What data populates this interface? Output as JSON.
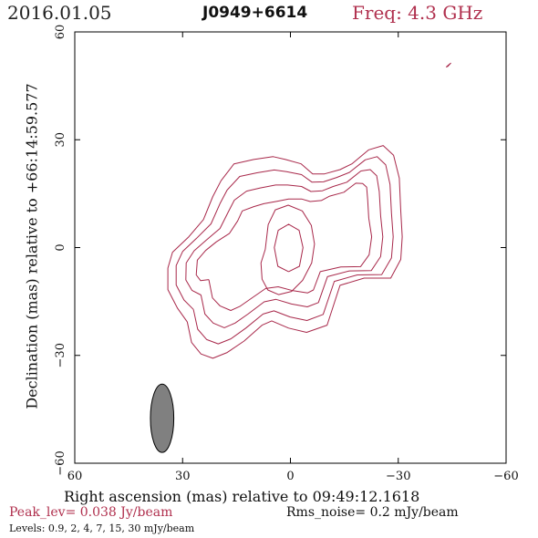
{
  "header": {
    "date": "2016.01.05",
    "source": "J0949+6614",
    "freq": "Freq: 4.3 GHz"
  },
  "footer": {
    "peak": "Peak_lev=  0.038 Jy/beam",
    "rms": "Rms_noise=   0.2 mJy/beam",
    "levels": "Levels: 0.9,   2,   4,   7,  15,  30 mJy/beam"
  },
  "colors": {
    "contour": "#a8284a",
    "beam_fill": "#808080",
    "text_accent": "#b0304e"
  },
  "chart_data": {
    "type": "contour",
    "xlabel": "Right ascension (mas) relative to 09:49:12.1618",
    "ylabel": "Declination (mas) relative to +66:14:59.577",
    "xlim": [
      60,
      -60
    ],
    "ylim": [
      -60,
      60
    ],
    "xticks": [
      60,
      30,
      0,
      -30,
      -60
    ],
    "yticks": [
      -60,
      -30,
      0,
      30,
      60
    ],
    "xtick_labels": [
      "60",
      "30",
      "0",
      "−30",
      "−60"
    ],
    "ytick_labels": [
      "−60",
      "−30",
      "0",
      "30",
      "60"
    ],
    "levels_mjy": [
      0.9,
      2,
      4,
      7,
      15,
      30
    ],
    "peak_jy_per_beam": 0.038,
    "rms_mjy_per_beam": 0.2,
    "beam": {
      "x": 35.7,
      "y": -47.5,
      "major": 19,
      "minor": 6.5,
      "pa_deg": 0
    },
    "contours": [
      {
        "level": 0.9,
        "points": [
          [
            28.7,
            -20.7
          ],
          [
            27.5,
            -26.4
          ],
          [
            24.9,
            -29.6
          ],
          [
            21.6,
            -30.8
          ],
          [
            17.6,
            -29.2
          ],
          [
            12.9,
            -26.0
          ],
          [
            7.9,
            -21.6
          ],
          [
            5.2,
            -20.4
          ],
          [
            0.5,
            -22.4
          ],
          [
            -4.5,
            -23.6
          ],
          [
            -10.2,
            -21.6
          ],
          [
            -13.8,
            -10.5
          ],
          [
            -20.5,
            -8.5
          ],
          [
            -27.9,
            -8.5
          ],
          [
            -30.7,
            -3.3
          ],
          [
            -31.1,
            3.0
          ],
          [
            -30.7,
            10.2
          ],
          [
            -30.3,
            19.3
          ],
          [
            -28.7,
            25.7
          ],
          [
            -25.8,
            28.4
          ],
          [
            -21.8,
            27.2
          ],
          [
            -17.1,
            23.3
          ],
          [
            -13.8,
            21.7
          ],
          [
            -9.5,
            20.5
          ],
          [
            -6.2,
            20.5
          ],
          [
            -3.0,
            23.3
          ],
          [
            1.4,
            24.5
          ],
          [
            4.8,
            25.3
          ],
          [
            10.2,
            24.5
          ],
          [
            15.7,
            23.3
          ],
          [
            19.3,
            18.6
          ],
          [
            21.6,
            14.2
          ],
          [
            24.2,
            7.8
          ],
          [
            28.3,
            3.0
          ],
          [
            32.8,
            -1.3
          ],
          [
            34.1,
            -5.7
          ],
          [
            34.1,
            -11.7
          ],
          [
            31.4,
            -16.9
          ],
          [
            28.7,
            -20.7
          ]
        ]
      },
      {
        "level": 2,
        "points": [
          [
            27.0,
            -17.2
          ],
          [
            25.8,
            -22.7
          ],
          [
            23.3,
            -25.6
          ],
          [
            20.1,
            -26.8
          ],
          [
            16.6,
            -25.4
          ],
          [
            12.4,
            -22.4
          ],
          [
            7.6,
            -18.5
          ],
          [
            4.6,
            -17.6
          ],
          [
            0.1,
            -19.3
          ],
          [
            -4.6,
            -20.3
          ],
          [
            -9.1,
            -18.6
          ],
          [
            -12.2,
            -9.4
          ],
          [
            -18.6,
            -7.6
          ],
          [
            -25.4,
            -7.5
          ],
          [
            -28.1,
            -2.9
          ],
          [
            -28.6,
            3.0
          ],
          [
            -28.1,
            9.6
          ],
          [
            -27.7,
            17.6
          ],
          [
            -26.5,
            23.0
          ],
          [
            -24.1,
            25.3
          ],
          [
            -20.8,
            24.4
          ],
          [
            -16.4,
            20.9
          ],
          [
            -12.9,
            19.5
          ],
          [
            -9.2,
            18.3
          ],
          [
            -6.0,
            18.2
          ],
          [
            -3.1,
            20.3
          ],
          [
            1.1,
            21.1
          ],
          [
            4.5,
            21.6
          ],
          [
            9.3,
            20.8
          ],
          [
            14.1,
            19.8
          ],
          [
            17.6,
            16.0
          ],
          [
            19.6,
            12.2
          ],
          [
            22.1,
            6.6
          ],
          [
            26.1,
            2.6
          ],
          [
            30.0,
            -1.1
          ],
          [
            31.8,
            -5.0
          ],
          [
            31.8,
            -10.4
          ],
          [
            29.6,
            -14.6
          ],
          [
            27.0,
            -17.2
          ]
        ]
      },
      {
        "level": 4,
        "points": [
          [
            24.9,
            -13.2
          ],
          [
            23.8,
            -18.5
          ],
          [
            21.5,
            -21.0
          ],
          [
            18.4,
            -22.3
          ],
          [
            15.4,
            -21.0
          ],
          [
            11.8,
            -18.5
          ],
          [
            7.3,
            -15.1
          ],
          [
            4.0,
            -14.4
          ],
          [
            -0.3,
            -15.7
          ],
          [
            -4.7,
            -16.5
          ],
          [
            -7.8,
            -15.3
          ],
          [
            -10.3,
            -8.1
          ],
          [
            -16.4,
            -6.5
          ],
          [
            -22.5,
            -6.4
          ],
          [
            -25.1,
            -2.5
          ],
          [
            -25.7,
            3.0
          ],
          [
            -25.1,
            8.9
          ],
          [
            -24.7,
            15.6
          ],
          [
            -24.0,
            20.0
          ],
          [
            -22.2,
            21.7
          ],
          [
            -19.6,
            21.3
          ],
          [
            -15.7,
            18.2
          ],
          [
            -11.9,
            17.0
          ],
          [
            -8.9,
            15.8
          ],
          [
            -5.7,
            15.6
          ],
          [
            -3.1,
            17.0
          ],
          [
            0.8,
            17.4
          ],
          [
            4.1,
            17.4
          ],
          [
            8.4,
            16.6
          ],
          [
            12.2,
            15.7
          ],
          [
            15.6,
            13.2
          ],
          [
            17.3,
            9.9
          ],
          [
            19.6,
            5.3
          ],
          [
            23.4,
            2.1
          ],
          [
            26.8,
            -0.9
          ],
          [
            29.0,
            -4.3
          ],
          [
            29.1,
            -9.0
          ],
          [
            27.4,
            -11.9
          ],
          [
            24.9,
            -13.2
          ]
        ]
      },
      {
        "level": 7,
        "points": [
          [
            22.7,
            -8.9
          ],
          [
            21.7,
            -14.0
          ],
          [
            19.6,
            -16.2
          ],
          [
            16.6,
            -17.5
          ],
          [
            14.1,
            -16.4
          ],
          [
            11.1,
            -14.3
          ],
          [
            6.9,
            -11.4
          ],
          [
            3.4,
            -10.9
          ],
          [
            -0.7,
            -12.0
          ],
          [
            -4.8,
            -12.6
          ],
          [
            -6.4,
            -11.8
          ],
          [
            -8.3,
            -6.7
          ],
          [
            -14.0,
            -5.4
          ],
          [
            -19.5,
            -5.3
          ],
          [
            -21.9,
            -2.0
          ],
          [
            -22.6,
            3.0
          ],
          [
            -21.8,
            8.2
          ],
          [
            -21.5,
            13.4
          ],
          [
            -21.2,
            16.8
          ],
          [
            -20.1,
            17.8
          ],
          [
            -18.2,
            17.9
          ],
          [
            -14.9,
            15.4
          ],
          [
            -10.9,
            14.3
          ],
          [
            -8.6,
            13.1
          ],
          [
            -5.5,
            12.8
          ],
          [
            -3.2,
            13.5
          ],
          [
            0.5,
            13.5
          ],
          [
            3.7,
            12.9
          ],
          [
            7.4,
            12.2
          ],
          [
            10.2,
            11.4
          ],
          [
            13.4,
            10.2
          ],
          [
            14.7,
            7.4
          ],
          [
            17.0,
            3.9
          ],
          [
            20.6,
            1.6
          ],
          [
            23.6,
            -0.8
          ],
          [
            25.9,
            -3.5
          ],
          [
            26.2,
            -7.6
          ],
          [
            25.0,
            -9.2
          ],
          [
            22.7,
            -8.9
          ]
        ]
      },
      {
        "level": 15,
        "points": [
          [
            7.0,
            -0.5
          ],
          [
            8.2,
            -4.3
          ],
          [
            7.9,
            -8.8
          ],
          [
            6.3,
            -11.8
          ],
          [
            3.3,
            -13.1
          ],
          [
            -0.3,
            -12.2
          ],
          [
            -3.4,
            -9.1
          ],
          [
            -5.9,
            -4.3
          ],
          [
            -6.7,
            1.0
          ],
          [
            -5.8,
            6.2
          ],
          [
            -3.3,
            10.2
          ],
          [
            0.6,
            11.8
          ],
          [
            4.2,
            10.5
          ],
          [
            6.2,
            6.4
          ],
          [
            7.0,
            -0.5
          ]
        ]
      },
      {
        "level": 30,
        "points": [
          [
            0.5,
            -6.7
          ],
          [
            -2.5,
            -5.2
          ],
          [
            -3.5,
            0.0
          ],
          [
            -2.4,
            4.8
          ],
          [
            0.5,
            6.5
          ],
          [
            3.4,
            4.8
          ],
          [
            4.5,
            0.0
          ],
          [
            3.5,
            -5.2
          ],
          [
            0.5,
            -6.7
          ]
        ]
      },
      {
        "level": 0.9,
        "points": [
          [
            -43.3,
            50.2
          ],
          [
            -44.0,
            50.8
          ],
          [
            -44.6,
            51.3
          ],
          [
            -43.8,
            50.4
          ],
          [
            -43.3,
            50.2
          ]
        ]
      }
    ]
  }
}
